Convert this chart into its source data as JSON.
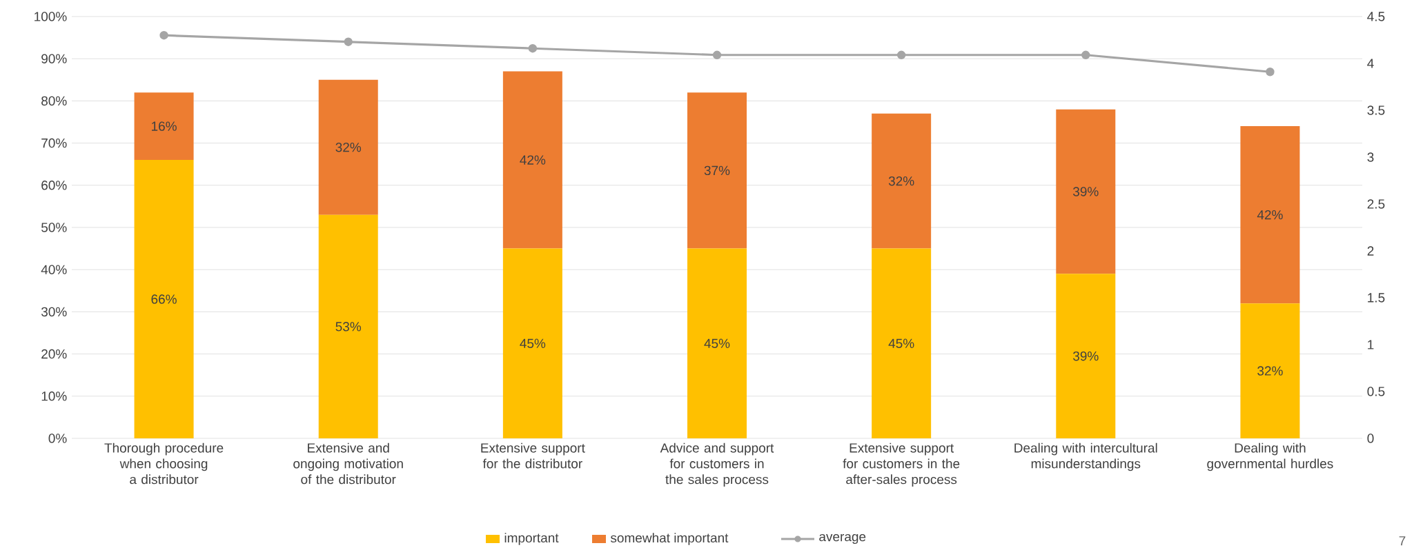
{
  "chart_data": {
    "type": "bar",
    "stacked": true,
    "categories": [
      "Thorough procedure when choosing a distributor",
      "Extensive and ongoing motivation of the distributor",
      "Extensive support for the distributor",
      "Advice and support for customers in the sales process",
      "Extensive support for customers in the after-sales process",
      "Dealing with intercultural misunderstandings",
      "Dealing with governmental hurdles"
    ],
    "series": [
      {
        "name": "important",
        "color": "#ffc000",
        "values": [
          66,
          53,
          45,
          45,
          45,
          39,
          32
        ],
        "value_labels": [
          "66%",
          "53%",
          "45%",
          "45%",
          "45%",
          "39%",
          "32%"
        ]
      },
      {
        "name": "somewhat important",
        "color": "#ed7d31",
        "values": [
          16,
          32,
          42,
          37,
          32,
          39,
          42
        ],
        "value_labels": [
          "16%",
          "32%",
          "42%",
          "37%",
          "32%",
          "39%",
          "42%"
        ]
      },
      {
        "name": "average",
        "type": "line",
        "axis": "y2",
        "color": "#a5a5a5",
        "marker": "circle",
        "values": [
          4.3,
          4.23,
          4.16,
          4.09,
          4.09,
          4.09,
          3.91
        ]
      }
    ],
    "ylim": [
      0,
      100
    ],
    "yticks": [
      {
        "value": 0,
        "label": "0%"
      },
      {
        "value": 10,
        "label": "10%"
      },
      {
        "value": 20,
        "label": "20%"
      },
      {
        "value": 30,
        "label": "30%"
      },
      {
        "value": 40,
        "label": "40%"
      },
      {
        "value": 50,
        "label": "50%"
      },
      {
        "value": 60,
        "label": "60%"
      },
      {
        "value": 70,
        "label": "70%"
      },
      {
        "value": 80,
        "label": "80%"
      },
      {
        "value": 90,
        "label": "90%"
      },
      {
        "value": 100,
        "label": "100%"
      }
    ],
    "y2lim": [
      0,
      4.5
    ],
    "y2ticks": [
      0,
      0.5,
      1,
      1.5,
      2,
      2.5,
      3,
      3.5,
      4,
      4.5
    ],
    "grid": "y",
    "legend": "bottom",
    "annotations": [
      "7"
    ]
  }
}
